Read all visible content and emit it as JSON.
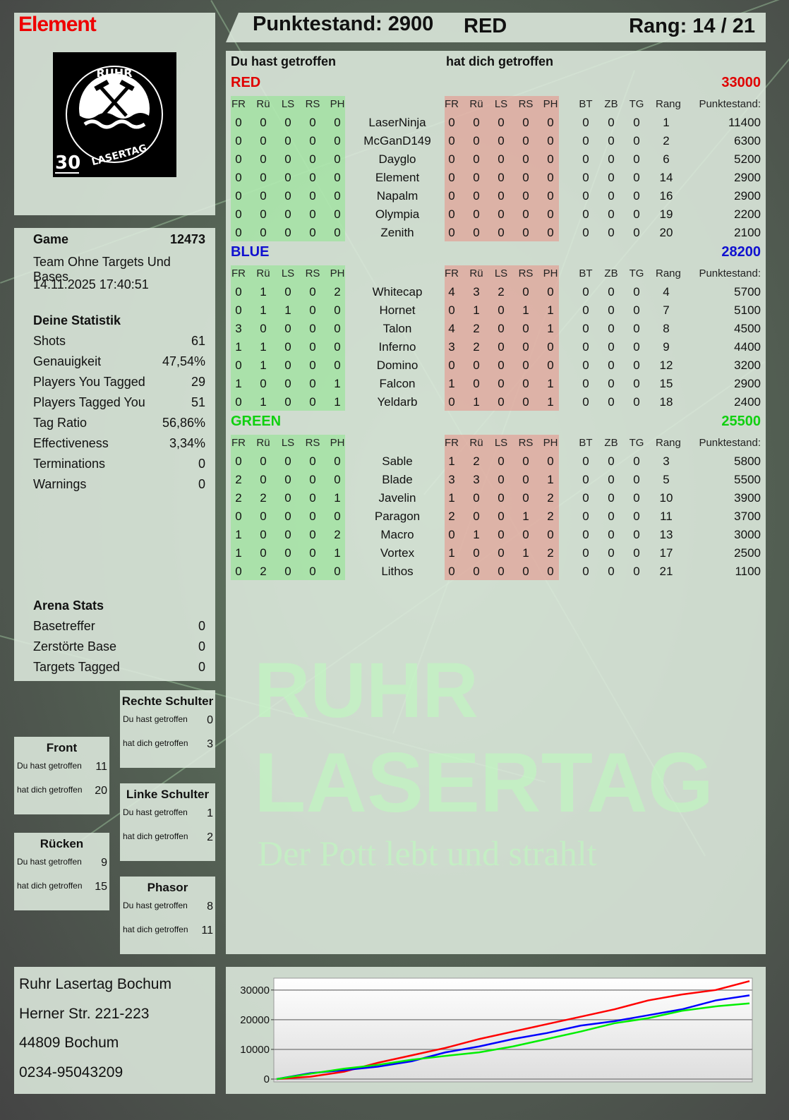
{
  "player": {
    "name": "Element",
    "logo_text": "RUHR LASERTAG 30"
  },
  "header": {
    "score_label": "Punktestand: 2900",
    "team": "RED",
    "rank_label": "Rang: 14 / 21"
  },
  "main": {
    "hit_label": "Du hast getroffen",
    "hit_by_label": "hat dich getroffen",
    "columns_hit": [
      "FR",
      "Rü",
      "LS",
      "RS",
      "PH"
    ],
    "columns_extra": [
      "BT",
      "ZB",
      "TG",
      "Rang",
      "Punktestand:"
    ],
    "teams": [
      {
        "name": "RED",
        "score": "33000",
        "color": "#e00000",
        "players": [
          [
            "0",
            "0",
            "0",
            "0",
            "0",
            "LaserNinja",
            "0",
            "0",
            "0",
            "0",
            "0",
            "0",
            "0",
            "0",
            "1",
            "11400"
          ],
          [
            "0",
            "0",
            "0",
            "0",
            "0",
            "McGanD149",
            "0",
            "0",
            "0",
            "0",
            "0",
            "0",
            "0",
            "0",
            "2",
            "6300"
          ],
          [
            "0",
            "0",
            "0",
            "0",
            "0",
            "Dayglo",
            "0",
            "0",
            "0",
            "0",
            "0",
            "0",
            "0",
            "0",
            "6",
            "5200"
          ],
          [
            "0",
            "0",
            "0",
            "0",
            "0",
            "Element",
            "0",
            "0",
            "0",
            "0",
            "0",
            "0",
            "0",
            "0",
            "14",
            "2900"
          ],
          [
            "0",
            "0",
            "0",
            "0",
            "0",
            "Napalm",
            "0",
            "0",
            "0",
            "0",
            "0",
            "0",
            "0",
            "0",
            "16",
            "2900"
          ],
          [
            "0",
            "0",
            "0",
            "0",
            "0",
            "Olympia",
            "0",
            "0",
            "0",
            "0",
            "0",
            "0",
            "0",
            "0",
            "19",
            "2200"
          ],
          [
            "0",
            "0",
            "0",
            "0",
            "0",
            "Zenith",
            "0",
            "0",
            "0",
            "0",
            "0",
            "0",
            "0",
            "0",
            "20",
            "2100"
          ]
        ]
      },
      {
        "name": "BLUE",
        "score": "28200",
        "color": "#1010d0",
        "players": [
          [
            "0",
            "1",
            "0",
            "0",
            "2",
            "Whitecap",
            "4",
            "3",
            "2",
            "0",
            "0",
            "0",
            "0",
            "0",
            "4",
            "5700"
          ],
          [
            "0",
            "1",
            "1",
            "0",
            "0",
            "Hornet",
            "0",
            "1",
            "0",
            "1",
            "1",
            "0",
            "0",
            "0",
            "7",
            "5100"
          ],
          [
            "3",
            "0",
            "0",
            "0",
            "0",
            "Talon",
            "4",
            "2",
            "0",
            "0",
            "1",
            "0",
            "0",
            "0",
            "8",
            "4500"
          ],
          [
            "1",
            "1",
            "0",
            "0",
            "0",
            "Inferno",
            "3",
            "2",
            "0",
            "0",
            "0",
            "0",
            "0",
            "0",
            "9",
            "4400"
          ],
          [
            "0",
            "1",
            "0",
            "0",
            "0",
            "Domino",
            "0",
            "0",
            "0",
            "0",
            "0",
            "0",
            "0",
            "0",
            "12",
            "3200"
          ],
          [
            "1",
            "0",
            "0",
            "0",
            "1",
            "Falcon",
            "1",
            "0",
            "0",
            "0",
            "1",
            "0",
            "0",
            "0",
            "15",
            "2900"
          ],
          [
            "0",
            "1",
            "0",
            "0",
            "1",
            "Yeldarb",
            "0",
            "1",
            "0",
            "0",
            "1",
            "0",
            "0",
            "0",
            "18",
            "2400"
          ]
        ]
      },
      {
        "name": "GREEN",
        "score": "25500",
        "color": "#10d010",
        "players": [
          [
            "0",
            "0",
            "0",
            "0",
            "0",
            "Sable",
            "1",
            "2",
            "0",
            "0",
            "0",
            "0",
            "0",
            "0",
            "3",
            "5800"
          ],
          [
            "2",
            "0",
            "0",
            "0",
            "0",
            "Blade",
            "3",
            "3",
            "0",
            "0",
            "1",
            "0",
            "0",
            "0",
            "5",
            "5500"
          ],
          [
            "2",
            "2",
            "0",
            "0",
            "1",
            "Javelin",
            "1",
            "0",
            "0",
            "0",
            "2",
            "0",
            "0",
            "0",
            "10",
            "3900"
          ],
          [
            "0",
            "0",
            "0",
            "0",
            "0",
            "Paragon",
            "2",
            "0",
            "0",
            "1",
            "2",
            "0",
            "0",
            "0",
            "11",
            "3700"
          ],
          [
            "1",
            "0",
            "0",
            "0",
            "2",
            "Macro",
            "0",
            "1",
            "0",
            "0",
            "0",
            "0",
            "0",
            "0",
            "13",
            "3000"
          ],
          [
            "1",
            "0",
            "0",
            "0",
            "1",
            "Vortex",
            "1",
            "0",
            "0",
            "1",
            "2",
            "0",
            "0",
            "0",
            "17",
            "2500"
          ],
          [
            "0",
            "2",
            "0",
            "0",
            "0",
            "Lithos",
            "0",
            "0",
            "0",
            "0",
            "0",
            "0",
            "0",
            "0",
            "21",
            "1100"
          ]
        ]
      }
    ]
  },
  "game": {
    "label": "Game",
    "id": "12473",
    "mode": "Team Ohne Targets Und Bases",
    "datetime": "14.11.2025 17:40:51"
  },
  "stats": {
    "title": "Deine Statistik",
    "items": [
      [
        "Shots",
        "61"
      ],
      [
        "Genauigkeit",
        "47,54%"
      ],
      [
        "Players You Tagged",
        "29"
      ],
      [
        "Players Tagged You",
        "51"
      ],
      [
        "Tag Ratio",
        "56,86%"
      ],
      [
        "Effectiveness",
        "3,34%"
      ],
      [
        "Terminations",
        "0"
      ],
      [
        "Warnings",
        "0"
      ]
    ]
  },
  "arena": {
    "title": "Arena Stats",
    "items": [
      [
        "Basetreffer",
        "0"
      ],
      [
        "Zerstörte Base",
        "0"
      ],
      [
        "Targets Tagged",
        "0"
      ]
    ]
  },
  "body_parts": {
    "hit_label": "Du hast getroffen",
    "hit_by_label": "hat dich getroffen",
    "items": [
      {
        "name": "Rechte Schulter",
        "hit": "0",
        "hit_by": "3"
      },
      {
        "name": "Front",
        "hit": "11",
        "hit_by": "20"
      },
      {
        "name": "Linke Schulter",
        "hit": "1",
        "hit_by": "2"
      },
      {
        "name": "Rücken",
        "hit": "9",
        "hit_by": "15"
      },
      {
        "name": "Phasor",
        "hit": "8",
        "hit_by": "11"
      }
    ]
  },
  "address": {
    "lines": [
      "Ruhr Lasertag Bochum",
      "Herner Str. 221-223",
      "44809 Bochum",
      "0234-95043209"
    ]
  },
  "watermark": {
    "line1": "RUHR",
    "line2": "LASERTAG",
    "slogan": "Der Pott lebt und strahlt"
  },
  "chart_data": {
    "type": "line",
    "ylim": [
      0,
      34000
    ],
    "yticks": [
      "30000",
      "20000",
      "10000",
      "0"
    ],
    "grid": true,
    "x": [
      0,
      1,
      2,
      3,
      4,
      5,
      6,
      7,
      8,
      9,
      10,
      11,
      12,
      13,
      14
    ],
    "series": [
      {
        "color": "#ff0000",
        "values": [
          0,
          800,
          2500,
          5500,
          8000,
          10500,
          13500,
          16000,
          18500,
          21000,
          23500,
          26500,
          28500,
          30000,
          33000
        ]
      },
      {
        "color": "#0000ff",
        "values": [
          0,
          2000,
          3000,
          4200,
          6000,
          9000,
          11000,
          13500,
          15500,
          18000,
          19500,
          21500,
          23500,
          26500,
          28200
        ]
      },
      {
        "color": "#00ee00",
        "values": [
          0,
          1800,
          3500,
          4800,
          6500,
          7800,
          9000,
          11000,
          13500,
          16000,
          18800,
          20500,
          23000,
          24500,
          25500
        ]
      }
    ]
  }
}
